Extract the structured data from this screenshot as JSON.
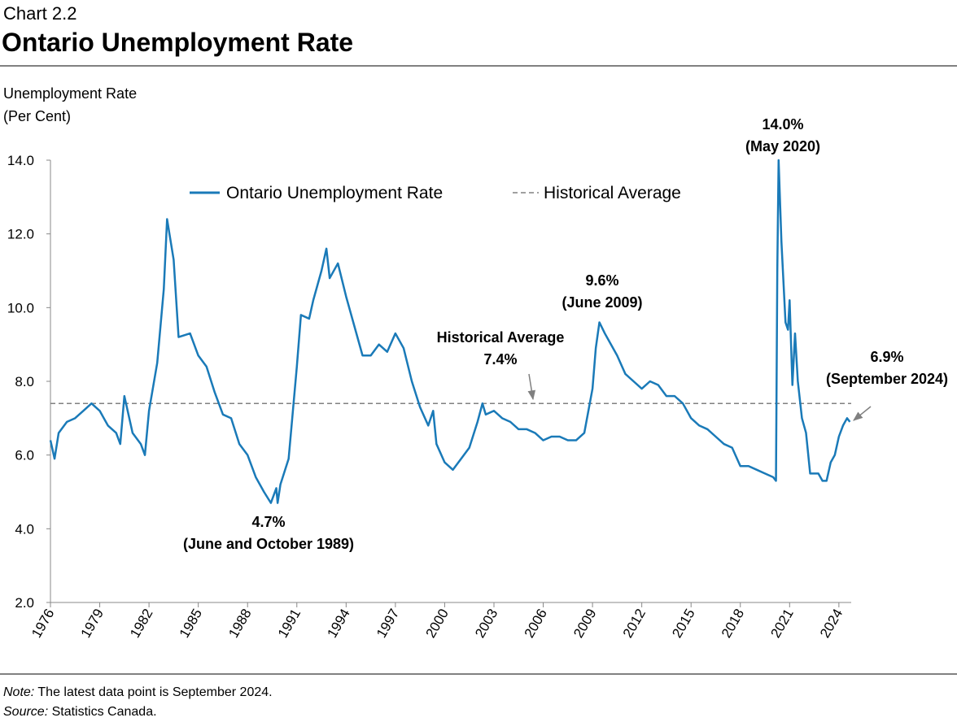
{
  "chart_data": {
    "type": "line",
    "chart_label": "Chart 2.2",
    "title": "Ontario Unemployment Rate",
    "y_label": [
      "Unemployment Rate",
      "(Per Cent)"
    ],
    "x": [
      1976.0,
      1976.25,
      1976.5,
      1977.0,
      1977.5,
      1978.0,
      1978.5,
      1979.0,
      1979.5,
      1980.0,
      1980.25,
      1980.5,
      1981.0,
      1981.5,
      1981.75,
      1982.0,
      1982.5,
      1982.9,
      1983.1,
      1983.5,
      1983.8,
      1984.5,
      1985.0,
      1985.5,
      1986.0,
      1986.5,
      1987.0,
      1987.5,
      1988.0,
      1988.5,
      1989.0,
      1989.42,
      1989.75,
      1989.83,
      1990.0,
      1990.5,
      1991.0,
      1991.25,
      1991.75,
      1992.0,
      1992.5,
      1992.8,
      1993.0,
      1993.5,
      1994.0,
      1994.5,
      1995.0,
      1995.5,
      1996.0,
      1996.5,
      1997.0,
      1997.5,
      1998.0,
      1998.5,
      1999.0,
      1999.3,
      1999.5,
      2000.0,
      2000.5,
      2001.0,
      2001.5,
      2002.0,
      2002.3,
      2002.5,
      2003.0,
      2003.5,
      2004.0,
      2004.5,
      2005.0,
      2005.5,
      2006.0,
      2006.5,
      2007.0,
      2007.5,
      2008.0,
      2008.5,
      2009.0,
      2009.2,
      2009.42,
      2009.75,
      2010.0,
      2010.5,
      2011.0,
      2011.5,
      2012.0,
      2012.5,
      2013.0,
      2013.5,
      2014.0,
      2014.5,
      2015.0,
      2015.5,
      2016.0,
      2016.5,
      2017.0,
      2017.5,
      2018.0,
      2018.5,
      2019.0,
      2019.5,
      2020.0,
      2020.17,
      2020.25,
      2020.33,
      2020.5,
      2020.75,
      2020.9,
      2021.0,
      2021.17,
      2021.33,
      2021.5,
      2021.75,
      2022.0,
      2022.25,
      2022.5,
      2022.75,
      2023.0,
      2023.25,
      2023.5,
      2023.75,
      2024.0,
      2024.25,
      2024.5,
      2024.67
    ],
    "series": [
      {
        "name": "Ontario Unemployment Rate",
        "color": "#1a7ab8",
        "values": [
          6.4,
          5.9,
          6.6,
          6.9,
          7.0,
          7.2,
          7.4,
          7.2,
          6.8,
          6.6,
          6.3,
          7.6,
          6.6,
          6.3,
          6.0,
          7.2,
          8.5,
          10.5,
          12.4,
          11.3,
          9.2,
          9.3,
          8.7,
          8.4,
          7.7,
          7.1,
          7.0,
          6.3,
          6.0,
          5.4,
          5.0,
          4.7,
          5.1,
          4.7,
          5.2,
          5.9,
          8.4,
          9.8,
          9.7,
          10.2,
          11.0,
          11.6,
          10.8,
          11.2,
          10.3,
          9.5,
          8.7,
          8.7,
          9.0,
          8.8,
          9.3,
          8.9,
          8.0,
          7.3,
          6.8,
          7.2,
          6.3,
          5.8,
          5.6,
          5.9,
          6.2,
          6.9,
          7.4,
          7.1,
          7.2,
          7.0,
          6.9,
          6.7,
          6.7,
          6.6,
          6.4,
          6.5,
          6.5,
          6.4,
          6.4,
          6.6,
          7.8,
          8.9,
          9.6,
          9.3,
          9.1,
          8.7,
          8.2,
          8.0,
          7.8,
          8.0,
          7.9,
          7.6,
          7.6,
          7.4,
          7.0,
          6.8,
          6.7,
          6.5,
          6.3,
          6.2,
          5.7,
          5.7,
          5.6,
          5.5,
          5.4,
          5.3,
          11.0,
          14.0,
          11.8,
          9.6,
          9.4,
          10.2,
          7.9,
          9.3,
          8.0,
          7.0,
          6.6,
          5.5,
          5.5,
          5.5,
          5.3,
          5.3,
          5.8,
          6.0,
          6.5,
          6.8,
          7.0,
          6.9
        ]
      }
    ],
    "reference_line": {
      "name": "Historical Average",
      "value": 7.4,
      "color": "#808080"
    },
    "xlim": [
      1976,
      2024.75
    ],
    "xticks": [
      1976,
      1979,
      1982,
      1985,
      1988,
      1991,
      1994,
      1997,
      2000,
      2003,
      2006,
      2009,
      2012,
      2015,
      2018,
      2021,
      2024
    ],
    "ylim": [
      2,
      14
    ],
    "yticks": [
      {
        "value": 2,
        "label": "2.0"
      },
      {
        "value": 4,
        "label": "4.0"
      },
      {
        "value": 6,
        "label": "6.0"
      },
      {
        "value": 8,
        "label": "8.0"
      },
      {
        "value": 10,
        "label": "10.0"
      },
      {
        "value": 12,
        "label": "12.0"
      },
      {
        "value": 14,
        "label": "14.0"
      }
    ],
    "annotations": [
      {
        "text": [
          "4.7%",
          "(June and October 1989)"
        ]
      },
      {
        "text": [
          "Historical Average",
          "7.4%"
        ]
      },
      {
        "text": [
          "9.6%",
          "(June 2009)"
        ]
      },
      {
        "text": [
          "14.0%",
          "(May 2020)"
        ]
      },
      {
        "text": [
          "6.9%",
          "(September 2024)"
        ]
      }
    ],
    "note": {
      "label": "Note:",
      "text": "The latest data point is September 2024."
    },
    "source": {
      "label": "Source:",
      "text": "Statistics Canada."
    }
  }
}
